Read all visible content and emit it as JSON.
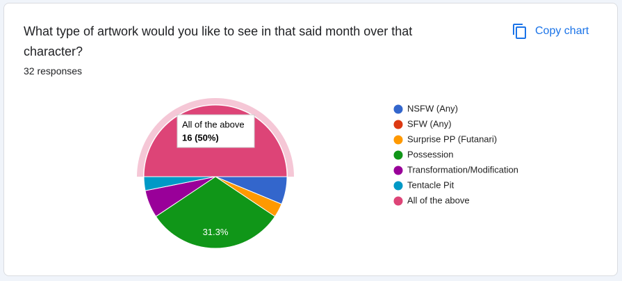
{
  "header": {
    "title": "What type of artwork would you like to see in that said month over that character?",
    "subtitle": "32 responses",
    "button": "Copy chart"
  },
  "chart_data": {
    "type": "pie",
    "categories": [
      "NSFW (Any)",
      "SFW (Any)",
      "Surprise PP (Futanari)",
      "Possession",
      "Transformation/Modification",
      "Tentacle Pit",
      "All of the above"
    ],
    "values": [
      2,
      0,
      1,
      10,
      2,
      1,
      16
    ],
    "value_labels": [
      null,
      null,
      null,
      "31.3%",
      null,
      null,
      null
    ],
    "colors": [
      "#3366cc",
      "#dc3912",
      "#ff9900",
      "#109618",
      "#990099",
      "#0099c6",
      "#dd4477"
    ],
    "highlight": 6,
    "tooltip": {
      "text": "16 (50%)"
    },
    "legend": "right"
  }
}
